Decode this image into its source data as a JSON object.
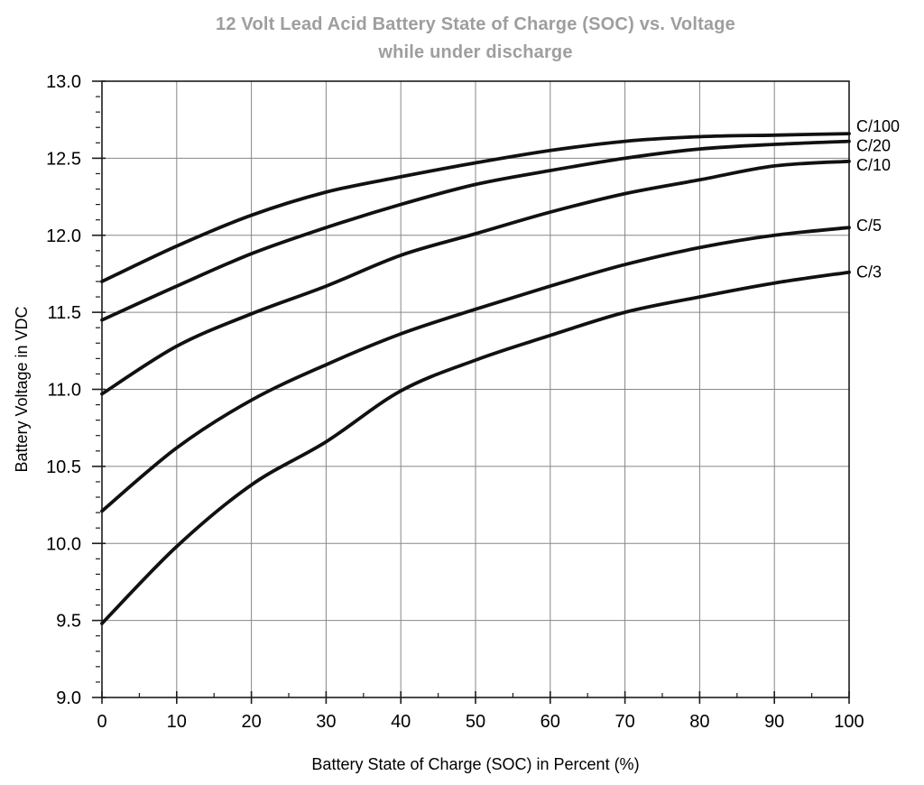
{
  "page": {
    "background": "#ffffff"
  },
  "chart_data": {
    "type": "line",
    "title_line1": "12 Volt Lead Acid Battery State of Charge (SOC) vs. Voltage",
    "title_line2": "while under discharge",
    "title_color": "#9e9e9e",
    "xlabel": "Battery State of Charge (SOC) in Percent (%)",
    "ylabel": "Battery Voltage in VDC",
    "xlim": [
      0,
      100
    ],
    "ylim": [
      9.0,
      13.0
    ],
    "grid": true,
    "legend_position": "right-of-curve-ends",
    "x_ticks": [
      0,
      10,
      20,
      30,
      40,
      50,
      60,
      70,
      80,
      90,
      100
    ],
    "x_tick_labels": [
      "0",
      "10",
      "20",
      "30",
      "40",
      "50",
      "60",
      "70",
      "80",
      "90",
      "100"
    ],
    "x_minor_step": 5,
    "y_ticks": [
      9.0,
      9.5,
      10.0,
      10.5,
      11.0,
      11.5,
      12.0,
      12.5,
      13.0
    ],
    "y_tick_labels": [
      "9.0",
      "9.5",
      "10.0",
      "10.5",
      "11.0",
      "11.5",
      "12.0",
      "12.5",
      "13.0"
    ],
    "y_minor_step": 0.1,
    "x": [
      0,
      10,
      20,
      30,
      40,
      50,
      60,
      70,
      80,
      90,
      100
    ],
    "series": [
      {
        "name": "C/100",
        "label_dy": -8,
        "values": [
          11.7,
          11.93,
          12.13,
          12.28,
          12.38,
          12.47,
          12.55,
          12.61,
          12.64,
          12.65,
          12.66
        ]
      },
      {
        "name": "C/20",
        "label_dy": 5,
        "values": [
          11.45,
          11.67,
          11.88,
          12.05,
          12.2,
          12.33,
          12.42,
          12.5,
          12.56,
          12.59,
          12.61
        ]
      },
      {
        "name": "C/10",
        "label_dy": 4,
        "values": [
          10.97,
          11.28,
          11.49,
          11.67,
          11.87,
          12.01,
          12.15,
          12.27,
          12.36,
          12.45,
          12.48
        ]
      },
      {
        "name": "C/5",
        "label_dy": -2,
        "values": [
          10.21,
          10.62,
          10.93,
          11.16,
          11.36,
          11.52,
          11.67,
          11.81,
          11.92,
          12.0,
          12.05
        ]
      },
      {
        "name": "C/3",
        "label_dy": 0,
        "values": [
          9.48,
          9.98,
          10.38,
          10.66,
          10.99,
          11.19,
          11.35,
          11.5,
          11.6,
          11.69,
          11.76
        ]
      }
    ],
    "line_color": "#111111",
    "grid_color": "#878787",
    "axis_color": "#1c1c1c"
  }
}
